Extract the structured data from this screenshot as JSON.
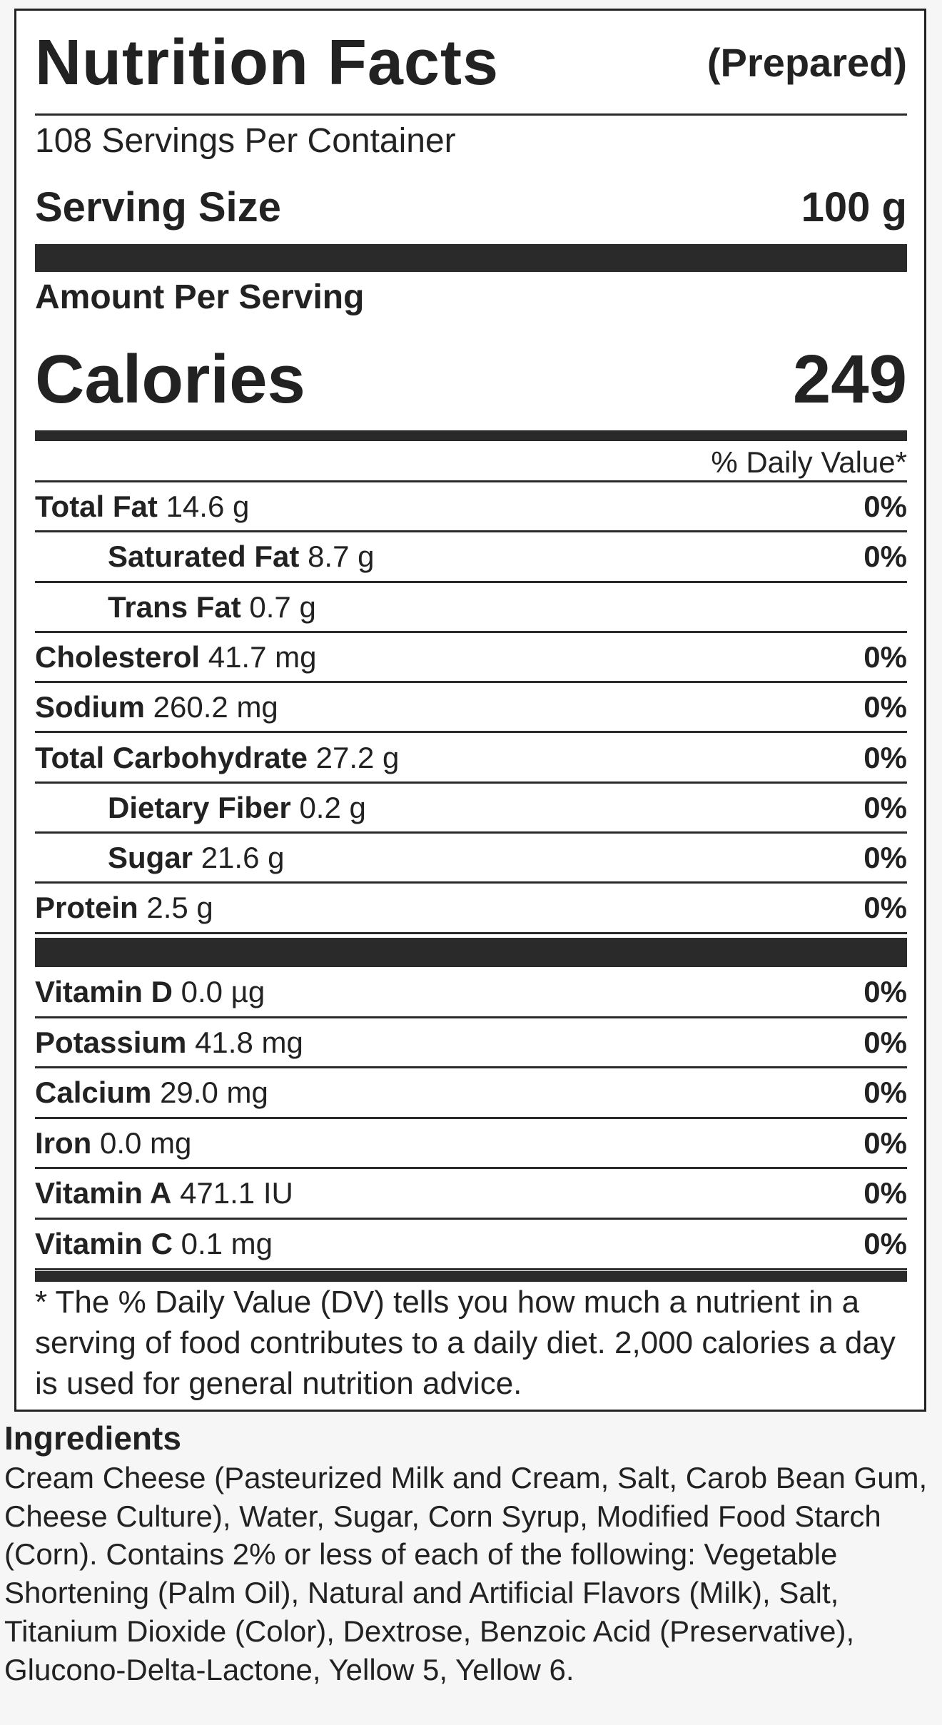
{
  "header": {
    "title": "Nutrition Facts",
    "subtitle": "(Prepared)"
  },
  "servings": "108 Servings Per Container",
  "serving_size": {
    "label": "Serving Size",
    "value": "100 g"
  },
  "amount_per_serving": "Amount Per Serving",
  "calories": {
    "label": "Calories",
    "value": "249"
  },
  "daily_value_header": "% Daily Value*",
  "nutrients": [
    {
      "name": "Total Fat",
      "amount": "14.6 g",
      "dv": "0%"
    },
    {
      "name": "Saturated Fat",
      "amount": "8.7 g",
      "dv": "0%",
      "indent": true
    },
    {
      "name": "Trans Fat",
      "amount": "0.7 g",
      "indent": true
    },
    {
      "name": "Cholesterol",
      "amount": "41.7 mg",
      "dv": "0%"
    },
    {
      "name": "Sodium",
      "amount": "260.2 mg",
      "dv": "0%"
    },
    {
      "name": "Total Carbohydrate",
      "amount": "27.2 g",
      "dv": "0%"
    },
    {
      "name": "Dietary Fiber",
      "amount": "0.2 g",
      "dv": "0%",
      "indent": true
    },
    {
      "name": "Sugar",
      "amount": "21.6 g",
      "dv": "0%",
      "indent": true
    },
    {
      "name": "Protein",
      "amount": "2.5 g",
      "dv": "0%"
    }
  ],
  "vitamins": [
    {
      "name": "Vitamin D",
      "amount": "0.0 µg",
      "dv": "0%"
    },
    {
      "name": "Potassium",
      "amount": "41.8 mg",
      "dv": "0%"
    },
    {
      "name": "Calcium",
      "amount": "29.0 mg",
      "dv": "0%"
    },
    {
      "name": "Iron",
      "amount": "0.0 mg",
      "dv": "0%"
    },
    {
      "name": "Vitamin A",
      "amount": "471.1 IU",
      "dv": "0%"
    },
    {
      "name": "Vitamin C",
      "amount": "0.1 mg",
      "dv": "0%"
    }
  ],
  "footnote": "* The % Daily Value (DV) tells you how much a nutrient in a serving of food contributes to a daily diet. 2,000 calories a day is used for general nutrition advice.",
  "ingredients": {
    "heading": "Ingredients",
    "text": "Cream Cheese (Pasteurized Milk and Cream, Salt, Carob Bean Gum, Cheese Culture), Water, Sugar, Corn Syrup, Modified Food Starch (Corn). Contains 2% or less of each of the following: Vegetable Shortening (Palm Oil), Natural and Artificial Flavors (Milk), Salt, Titanium Dioxide (Color), Dextrose, Benzoic Acid (Preservative), Glucono-Delta-Lactone, Yellow 5, Yellow 6."
  }
}
